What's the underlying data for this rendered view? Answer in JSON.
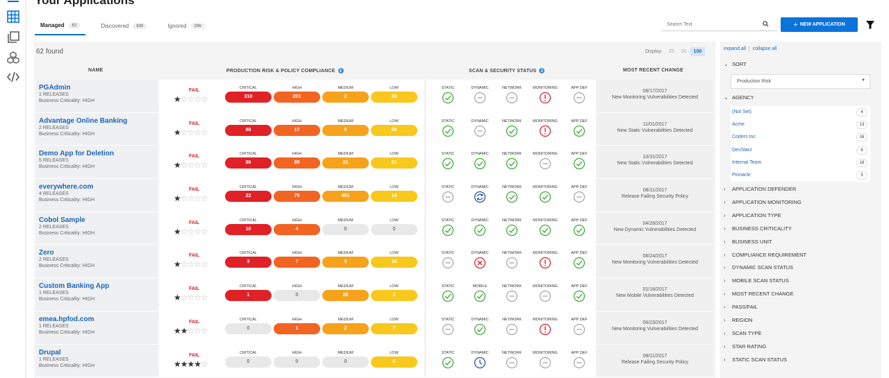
{
  "page": {
    "title": "Your Applications"
  },
  "tabs": [
    {
      "label": "Managed",
      "count": "62"
    },
    {
      "label": "Discovered",
      "count": "830"
    },
    {
      "label": "Ignored",
      "count": "296"
    }
  ],
  "search": {
    "placeholder": "Search Text"
  },
  "new_app_button": {
    "label": "NEW APPLICATION"
  },
  "results": {
    "found": "62 found"
  },
  "display": {
    "label": "Display:",
    "options": [
      "25",
      "50",
      "100"
    ],
    "selected": "100"
  },
  "columns": {
    "name": "NAME",
    "risk": "PRODUCTION RISK & POLICY COMPLIANCE",
    "scan": "SCAN & SECURITY STATUS",
    "change": "MOST RECENT CHANGE"
  },
  "severity_labels": [
    "CRITICAL",
    "HIGH",
    "MEDIUM",
    "LOW"
  ],
  "colors": {
    "critical": "#e02127",
    "high": "#f26422",
    "medium": "#f6a31b",
    "low": "#f8c81c",
    "pass": "#3aa935",
    "fail": "#d9212b",
    "none": "#9a9a9a",
    "pending": "#1f4fb0",
    "accent": "#0a74da"
  },
  "apps": [
    {
      "name": "PGAdmin",
      "releases": "1 RELEASES",
      "criticality": "Business Criticality: HIGH",
      "status": "FAIL",
      "stars": 1,
      "critical": "310",
      "high": "201",
      "medium": "2",
      "low": "20",
      "scan_labels": [
        "STATIC",
        "DYNAMIC",
        "NETWORK",
        "MONITORING",
        "APP DEF"
      ],
      "scan_icons": [
        "check-pass",
        "none",
        "none",
        "alert",
        "none"
      ],
      "change_date": "08/17/2017",
      "change_desc": "New Monitoring Vulnerabilities Detected"
    },
    {
      "name": "Advantage Online Banking",
      "releases": "2 RELEASES",
      "criticality": "Business Criticality: HIGH",
      "status": "FAIL",
      "stars": 1,
      "critical": "88",
      "high": "17",
      "medium": "5",
      "low": "55",
      "scan_labels": [
        "STATIC",
        "DYNAMIC",
        "NETWORK",
        "MONITORING",
        "APP DEF"
      ],
      "scan_icons": [
        "check",
        "none",
        "check",
        "alert",
        "check"
      ],
      "change_date": "11/01/2017",
      "change_desc": "New Static Vulnerabilities Detected"
    },
    {
      "name": "Demo App for Deletion",
      "releases": "5 RELEASES",
      "criticality": "Business Criticality: HIGH",
      "status": "FAIL",
      "stars": 1,
      "critical": "86",
      "high": "89",
      "medium": "21",
      "low": "81",
      "scan_labels": [
        "STATIC",
        "DYNAMIC",
        "NETWORK",
        "MONITORING",
        "APP DEF"
      ],
      "scan_icons": [
        "check",
        "check",
        "check",
        "none",
        "check"
      ],
      "change_date": "10/31/2017",
      "change_desc": "New Static Vulnerabilities Detected"
    },
    {
      "name": "everywhere.com",
      "releases": "4 RELEASES",
      "criticality": "Business Criticality: HIGH",
      "status": "FAIL",
      "stars": 1,
      "critical": "22",
      "high": "75",
      "medium": "461",
      "low": "14",
      "scan_labels": [
        "STATIC",
        "DYNAMIC",
        "NETWORK",
        "MONITORING",
        "APP DEF"
      ],
      "scan_icons": [
        "none",
        "refresh",
        "check",
        "check",
        "none"
      ],
      "change_date": "08/11/2017",
      "change_desc": "Release Failing Security Policy"
    },
    {
      "name": "Cobol Sample",
      "releases": "2 RELEASES",
      "criticality": "Business Criticality: HIGH",
      "status": "FAIL",
      "stars": 1,
      "critical": "10",
      "high": "4",
      "medium": "0",
      "low": "0",
      "scan_labels": [
        "STATIC",
        "DYNAMIC",
        "NETWORK",
        "MONITORING",
        "APP DEF"
      ],
      "scan_icons": [
        "check",
        "check",
        "check",
        "check",
        "check"
      ],
      "change_date": "04/28/2017",
      "change_desc": "New Dynamic Vulnerabilities Detected"
    },
    {
      "name": "Zero",
      "releases": "2 RELEASES",
      "criticality": "Business Criticality: HIGH",
      "status": "FAIL",
      "stars": 1,
      "critical": "3",
      "high": "7",
      "medium": "3",
      "low": "16",
      "scan_labels": [
        "STATIC",
        "DYNAMIC",
        "NETWORK",
        "MONITORING",
        "APP DEF"
      ],
      "scan_icons": [
        "none",
        "x-fail",
        "none",
        "alert",
        "check"
      ],
      "change_date": "08/24/2017",
      "change_desc": "New Monitoring Vulnerabilities Detected"
    },
    {
      "name": "Custom Banking App",
      "releases": "1 RELEASES",
      "criticality": "Business Criticality: HIGH",
      "status": "FAIL",
      "stars": 1,
      "critical": "1",
      "high": "0",
      "medium": "26",
      "low": "2",
      "scan_labels": [
        "STATIC",
        "MOBILE",
        "NETWORK",
        "MONITORING",
        "APP DEF"
      ],
      "scan_icons": [
        "check",
        "check",
        "none",
        "none",
        "check"
      ],
      "change_date": "01/18/2017",
      "change_desc": "New Mobile Vulnerabilities Detected"
    },
    {
      "name": "emea.hpfod.com",
      "releases": "1 RELEASES",
      "criticality": "Business Criticality: HIGH",
      "status": "FAIL",
      "stars": 2,
      "critical": "0",
      "high": "1",
      "medium": "2",
      "low": "7",
      "scan_labels": [
        "STATIC",
        "DYNAMIC",
        "NETWORK",
        "MONITORING",
        "APP DEF"
      ],
      "scan_icons": [
        "none",
        "check",
        "none",
        "alert",
        "none"
      ],
      "change_date": "06/23/2017",
      "change_desc": "New Monitoring Vulnerabilities Detected"
    },
    {
      "name": "Drupal",
      "releases": "1 RELEASES",
      "criticality": "Business Criticality: HIGH",
      "status": "FAIL",
      "stars": 4,
      "critical": "0",
      "high": "0",
      "medium": "0",
      "low": "6",
      "scan_labels": [
        "STATIC",
        "DYNAMIC",
        "NETWORK",
        "MONITORING",
        "APP DEF"
      ],
      "scan_icons": [
        "check",
        "clock",
        "none",
        "none",
        "none"
      ],
      "change_date": "08/11/2017",
      "change_desc": "Release Failing Security Policy"
    }
  ],
  "sidebar": {
    "expand_all": "expand all",
    "collapse_all": "collapse all",
    "sort": {
      "label": "SORT",
      "value": "Production Risk"
    },
    "agency": {
      "label": "AGENCY",
      "items": [
        {
          "label": "(Not Set)",
          "count": "4"
        },
        {
          "label": "Acme",
          "count": "13"
        },
        {
          "label": "Coders Inc",
          "count": "16"
        },
        {
          "label": "DevStarz",
          "count": "6"
        },
        {
          "label": "Internal Team",
          "count": "18"
        },
        {
          "label": "Pinnacle",
          "count": "5"
        }
      ]
    },
    "filters": [
      "APPLICATION DEFENDER",
      "APPLICATION MONITORING",
      "APPLICATION TYPE",
      "BUSINESS CRITICALITY",
      "BUSINESS UNIT",
      "COMPLIANCE REQUIREMENT",
      "DYNAMIC SCAN STATUS",
      "MOBILE SCAN STATUS",
      "MOST RECENT CHANGE",
      "PASS/FAIL",
      "REGION",
      "SCAN TYPE",
      "STAR RATING",
      "STATIC SCAN STATUS"
    ]
  }
}
